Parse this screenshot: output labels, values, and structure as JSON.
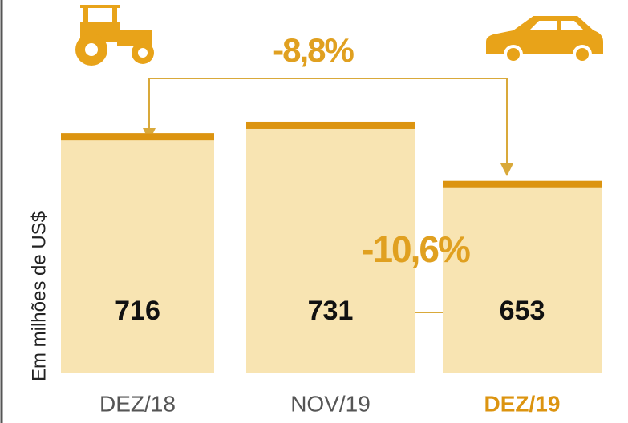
{
  "chart_data": {
    "type": "bar",
    "categories": [
      "DEZ/18",
      "NOV/19",
      "DEZ/19"
    ],
    "values": [
      716,
      731,
      653
    ],
    "color": "#f8e4b2",
    "cap_color": "#dc9410",
    "label_colors": [
      "#555555",
      "#555555",
      "#dc9410"
    ],
    "ylim": [
      400,
      750
    ],
    "ylabel": "Em milhões de US$",
    "annotations": [
      "-8,8%",
      "-10,6%"
    ]
  }
}
